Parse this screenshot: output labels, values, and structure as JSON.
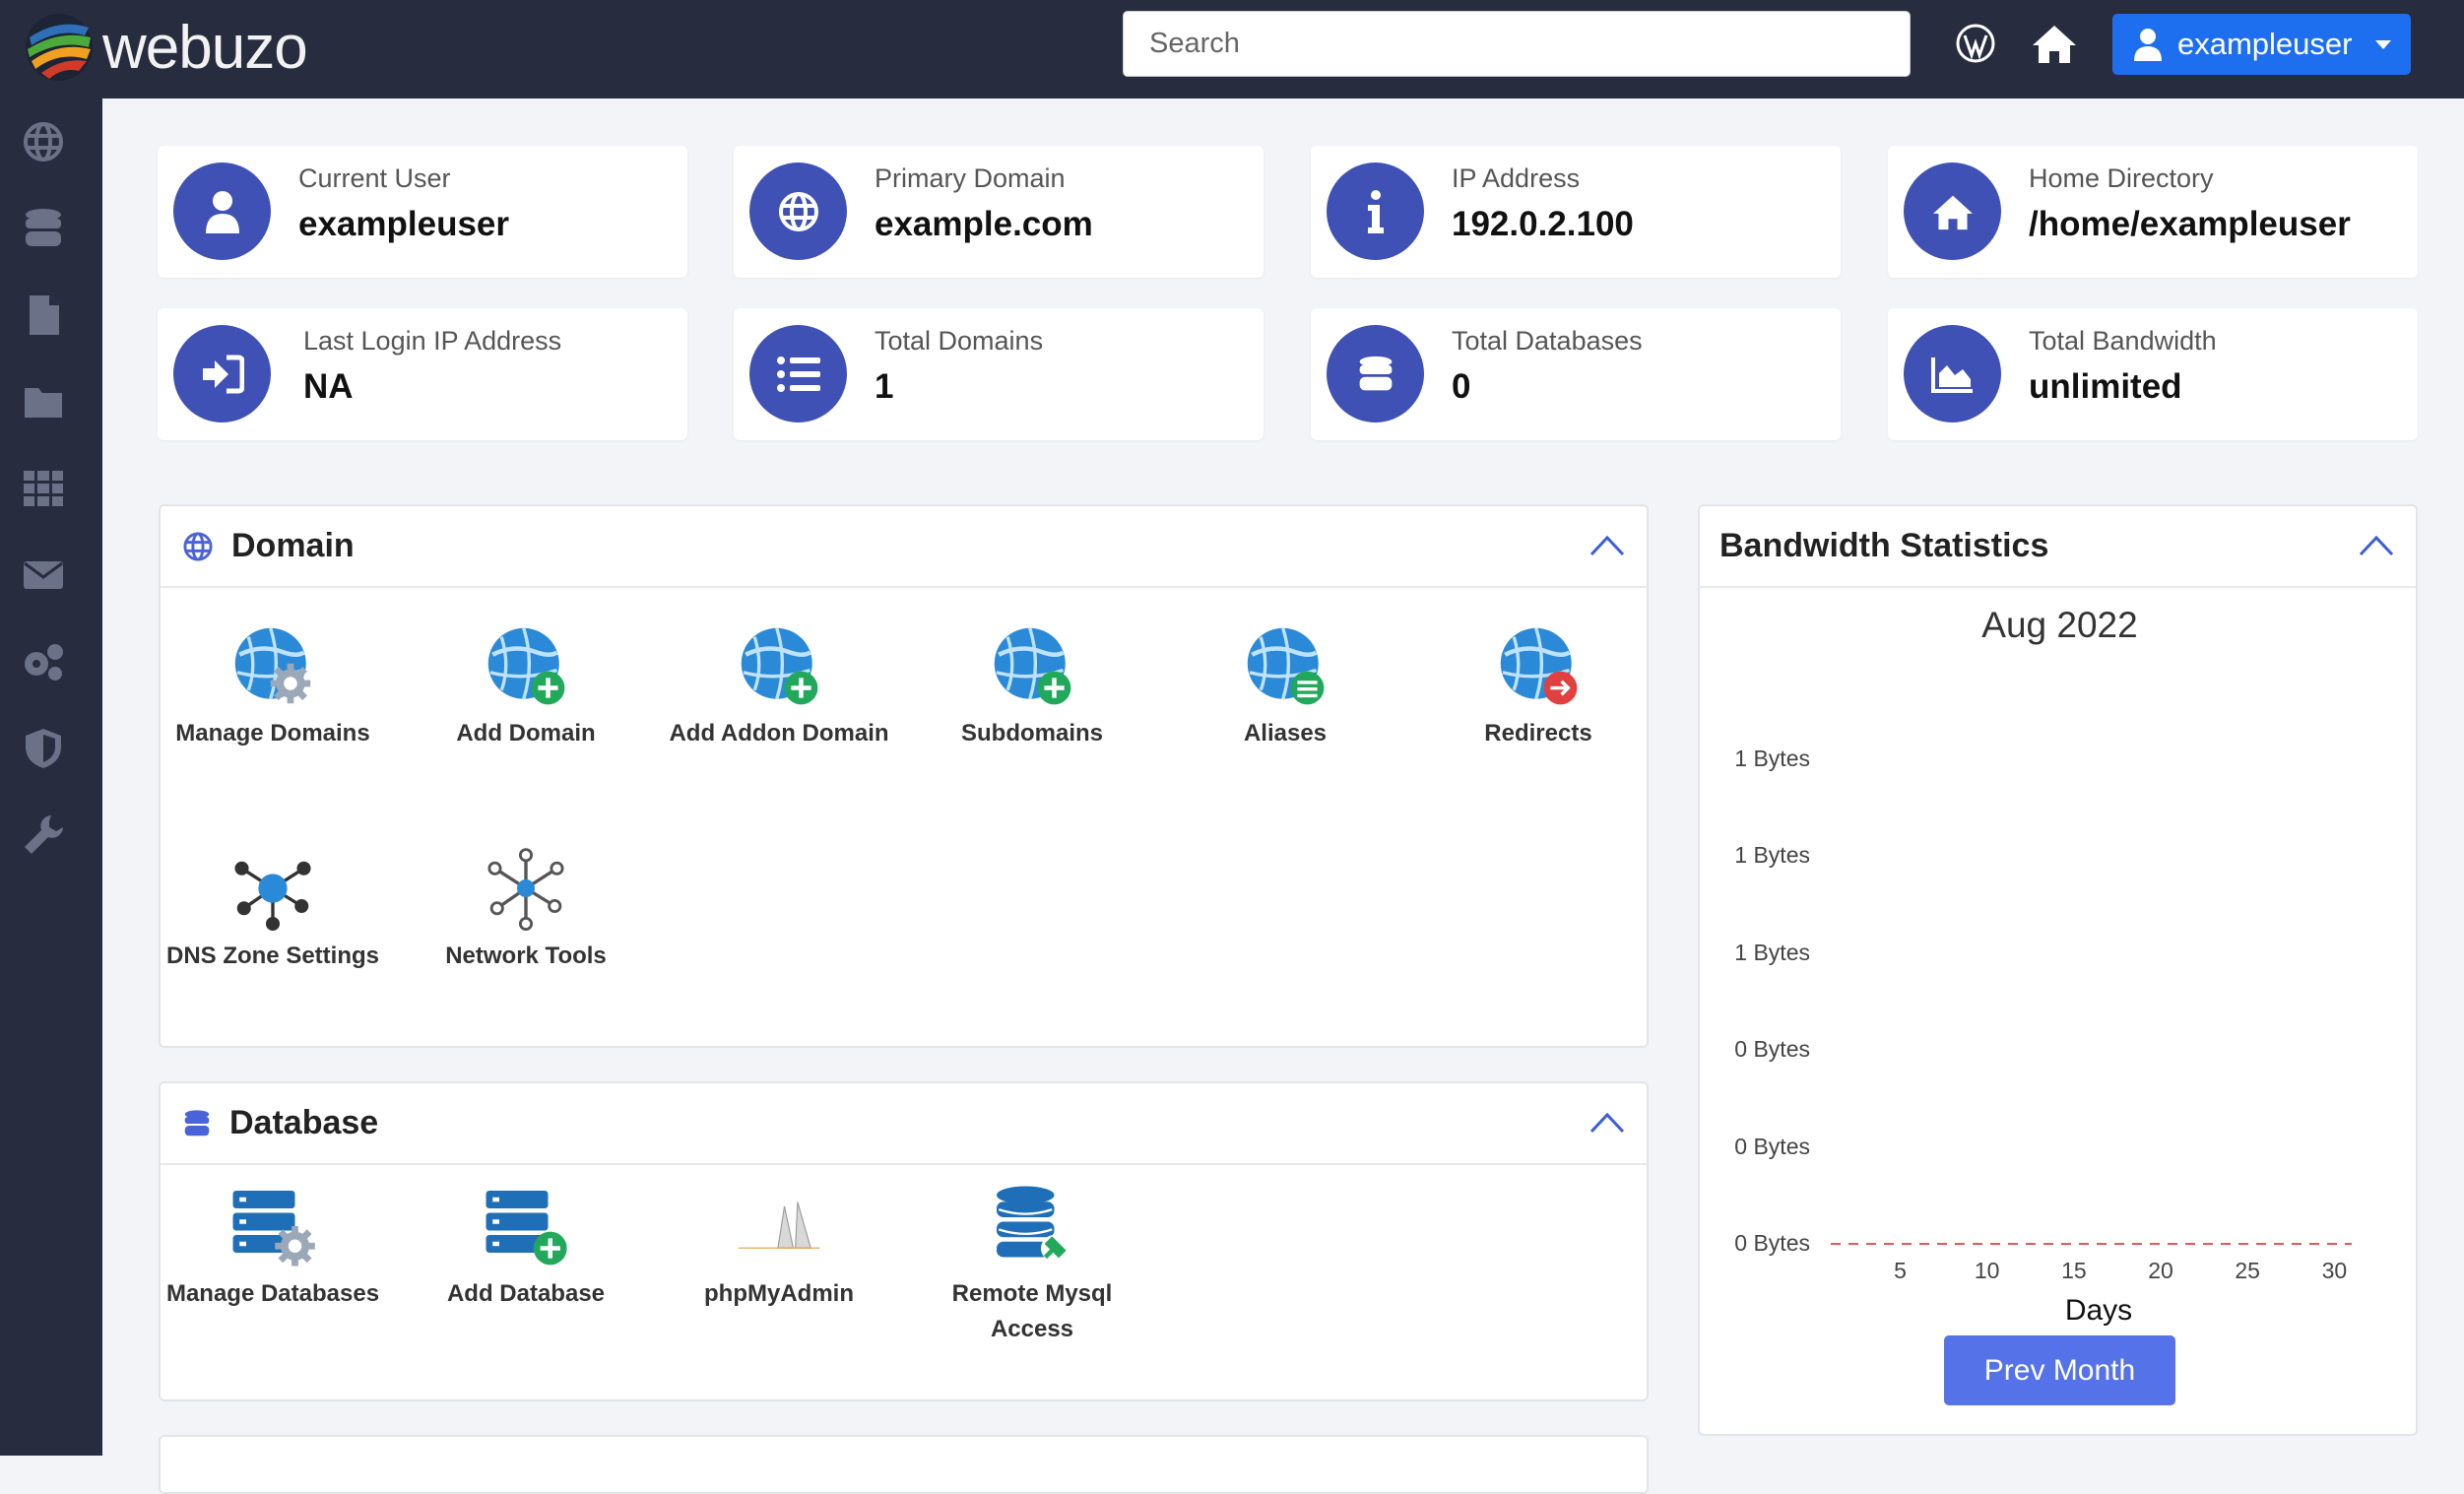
{
  "header": {
    "logo_text": "webuzo",
    "search_placeholder": "Search",
    "user_button": "exampleuser",
    "icons": [
      "wordpress-icon",
      "home-icon",
      "user-icon"
    ]
  },
  "sidebar": {
    "items": [
      "globe-icon",
      "database-icon",
      "file-icon",
      "folder-icon",
      "apps-grid-icon",
      "envelope-icon",
      "gears-icon",
      "shield-icon",
      "wrench-icon"
    ]
  },
  "info_cards": [
    {
      "label": "Current User",
      "value": "exampleuser",
      "icon": "user-icon"
    },
    {
      "label": "Primary Domain",
      "value": "example.com",
      "icon": "globe-icon"
    },
    {
      "label": "IP Address",
      "value": "192.0.2.100",
      "icon": "info-icon"
    },
    {
      "label": "Home Directory",
      "value": "/home/exampleuser",
      "icon": "home-icon"
    },
    {
      "label": "Last Login IP Address",
      "value": "NA",
      "icon": "sign-in-icon"
    },
    {
      "label": "Total Domains",
      "value": "1",
      "icon": "list-icon"
    },
    {
      "label": "Total Databases",
      "value": "0",
      "icon": "database-icon"
    },
    {
      "label": "Total Bandwidth",
      "value": "unlimited",
      "icon": "area-chart-icon"
    }
  ],
  "domain_panel": {
    "title": "Domain",
    "items": [
      {
        "label": "Manage Domains",
        "icon": "globe-gear-icon"
      },
      {
        "label": "Add Domain",
        "icon": "globe-plus-icon"
      },
      {
        "label": "Add Addon Domain",
        "icon": "globe-plus-icon"
      },
      {
        "label": "Subdomains",
        "icon": "globe-plus-icon"
      },
      {
        "label": "Aliases",
        "icon": "globe-list-icon"
      },
      {
        "label": "Redirects",
        "icon": "globe-redirect-icon"
      },
      {
        "label": "DNS Zone Settings",
        "icon": "dns-network-icon"
      },
      {
        "label": "Network Tools",
        "icon": "network-tools-icon"
      }
    ]
  },
  "database_panel": {
    "title": "Database",
    "items": [
      {
        "label": "Manage Databases",
        "icon": "database-gear-icon"
      },
      {
        "label": "Add Database",
        "icon": "database-plus-icon"
      },
      {
        "label": "phpMyAdmin",
        "icon": "phpmyadmin-logo"
      },
      {
        "label": "Remote Mysql Access",
        "icon": "database-remote-icon"
      }
    ]
  },
  "bandwidth_panel": {
    "title": "Bandwidth Statistics",
    "prev_button": "Prev Month"
  },
  "chart_data": {
    "type": "line",
    "title": "Aug 2022",
    "xlabel": "Days",
    "ylabel": "",
    "x_ticks": [
      "5",
      "10",
      "15",
      "20",
      "25",
      "30"
    ],
    "y_ticks": [
      "1 Bytes",
      "1 Bytes",
      "1 Bytes",
      "0 Bytes",
      "0 Bytes",
      "0 Bytes"
    ],
    "xlim": [
      1,
      31
    ],
    "ylim": [
      0,
      1
    ],
    "series": [
      {
        "values": [
          0,
          0,
          0,
          0,
          0,
          0,
          0,
          0,
          0,
          0,
          0,
          0,
          0,
          0,
          0,
          0,
          0,
          0,
          0,
          0,
          0,
          0,
          0,
          0,
          0,
          0,
          0,
          0,
          0,
          0,
          0
        ],
        "color": "#e05a5a",
        "style": "dashed"
      }
    ],
    "grid": false
  },
  "colors": {
    "topbar": "#272d3f",
    "accent": "#3f51b5",
    "user_button": "#1e6ff0",
    "prev_button": "#5572e8"
  }
}
